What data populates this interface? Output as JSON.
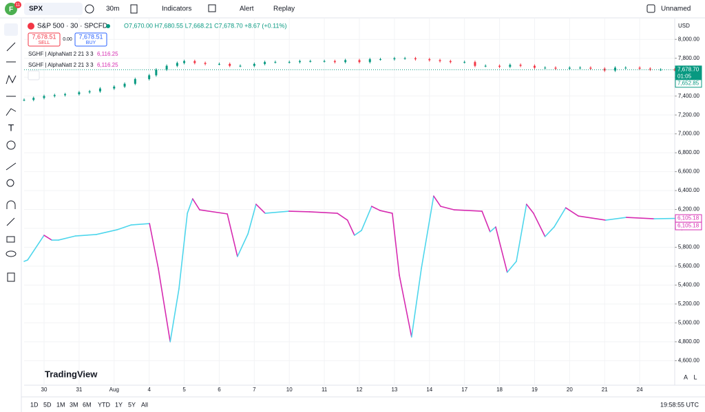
{
  "topbar": {
    "avatar": "F",
    "badge": "11",
    "symbol": "SPX",
    "interval": "30m",
    "indicators": "Indicators",
    "alert": "Alert",
    "replay": "Replay",
    "layout": "Unnamed"
  },
  "legend": {
    "title": "S&P 500 · 30 · SPCFD",
    "ohlc": "O7,670.00 H7,680.55 L7,668.21 C7,678.70 +8.67 (+0.11%)",
    "sell_price": "7,678.51",
    "sell": "SELL",
    "spread": "0.00",
    "buy_price": "7,678.51",
    "buy": "BUY",
    "studies": [
      {
        "name": "SGHF | AlphaNatt 2 21 3 3",
        "value": "6,116.25"
      },
      {
        "name": "SGHF | AlphaNatt 2 21 3 3",
        "value": "6,116.25"
      }
    ]
  },
  "currency": "USD",
  "watermark": "TradingView",
  "price_tags": {
    "last": "7,678.70",
    "countdown": "01:05",
    "prev": "7,652.85",
    "study1": "6,105.18",
    "study2": "6,105.18"
  },
  "chart": {
    "type": "candlestick-with-oscillator",
    "ylim": [
      4450,
      8220
    ],
    "xlim": [
      -0.57,
      18.0
    ],
    "last_price": 7678.7,
    "yticks": [
      {
        "value": 8000,
        "label": "8,000.00"
      },
      {
        "value": 7800,
        "label": "7,800.00"
      },
      {
        "value": 7600,
        "label": "7,600.00"
      },
      {
        "value": 7400,
        "label": "7,400.00"
      },
      {
        "value": 7200,
        "label": "7,200.00"
      },
      {
        "value": 7000,
        "label": "7,000.00"
      },
      {
        "value": 6800,
        "label": "6,800.00"
      },
      {
        "value": 6600,
        "label": "6,600.00"
      },
      {
        "value": 6400,
        "label": "6,400.00"
      },
      {
        "value": 6200,
        "label": "6,200.00"
      },
      {
        "value": 6000,
        "label": "6,000.00"
      },
      {
        "value": 5800,
        "label": "5,800.00"
      },
      {
        "value": 5600,
        "label": "5,600.00"
      },
      {
        "value": 5400,
        "label": "5,400.00"
      },
      {
        "value": 5200,
        "label": "5,200.00"
      },
      {
        "value": 5000,
        "label": "5,000.00"
      },
      {
        "value": 4800,
        "label": "4,800.00"
      },
      {
        "value": 4600,
        "label": "4,600.00"
      }
    ],
    "xticks": [
      {
        "value": 0,
        "label": "30"
      },
      {
        "value": 1,
        "label": "31"
      },
      {
        "value": 2,
        "label": "Aug"
      },
      {
        "value": 3,
        "label": "4"
      },
      {
        "value": 4,
        "label": "5"
      },
      {
        "value": 5,
        "label": "6"
      },
      {
        "value": 6,
        "label": "7"
      },
      {
        "value": 7,
        "label": "10"
      },
      {
        "value": 8,
        "label": "11"
      },
      {
        "value": 9,
        "label": "12"
      },
      {
        "value": 10,
        "label": "13"
      },
      {
        "value": 11,
        "label": "14"
      },
      {
        "value": 12,
        "label": "17"
      },
      {
        "value": 13,
        "label": "18"
      },
      {
        "value": 14,
        "label": "19"
      },
      {
        "value": 15,
        "label": "20"
      },
      {
        "value": 16,
        "label": "21"
      },
      {
        "value": 17,
        "label": "24"
      }
    ],
    "price": {
      "up_color": "#089981",
      "down_color": "#f23645",
      "x": [
        -0.57,
        -0.3,
        0,
        0.3,
        0.6,
        1,
        1.3,
        1.6,
        2,
        2.3,
        2.6,
        3,
        3.2,
        3.5,
        3.8,
        4,
        4.3,
        4.6,
        5,
        5.3,
        5.6,
        6,
        6.3,
        6.6,
        7,
        7.3,
        7.6,
        8,
        8.3,
        8.6,
        9,
        9.3,
        9.6,
        10,
        10.3,
        10.6,
        11,
        11.3,
        11.6,
        12,
        12.3,
        12.6,
        13,
        13.3,
        13.6,
        14,
        14.3,
        14.6,
        15,
        15.3,
        15.6,
        16,
        16.3,
        16.6,
        17,
        17.3,
        17.6,
        18
      ],
      "values": [
        7360,
        7380,
        7400,
        7410,
        7420,
        7440,
        7450,
        7480,
        7500,
        7530,
        7580,
        7620,
        7680,
        7720,
        7750,
        7770,
        7750,
        7740,
        7740,
        7720,
        7720,
        7740,
        7760,
        7760,
        7760,
        7770,
        7770,
        7770,
        7760,
        7780,
        7760,
        7790,
        7790,
        7800,
        7800,
        7790,
        7780,
        7770,
        7760,
        7760,
        7720,
        7720,
        7710,
        7730,
        7720,
        7700,
        7700,
        7690,
        7700,
        7700,
        7690,
        7670,
        7700,
        7700,
        7690,
        7680,
        7680,
        7679
      ]
    },
    "oscillator": {
      "up_color": "#4dd6ec",
      "down_color": "#d62ab0",
      "x": [
        -0.57,
        -0.47,
        0,
        0.22,
        0.41,
        0.9,
        1.49,
        2.08,
        2.48,
        3.01,
        3.26,
        3.6,
        3.85,
        4.09,
        4.24,
        4.44,
        5.23,
        5.52,
        5.82,
        6.05,
        6.31,
        6.99,
        7.58,
        8.37,
        8.66,
        8.86,
        9.06,
        9.35,
        9.59,
        9.94,
        10.14,
        10.49,
        10.77,
        11.12,
        11.32,
        11.71,
        12.5,
        12.73,
        12.89,
        13.22,
        13.48,
        13.77,
        13.97,
        14.3,
        14.56,
        14.89,
        15.25,
        16.03,
        16.62,
        17.41,
        18.0
      ],
      "values": [
        5651,
        5665,
        5927,
        5876,
        5876,
        5920,
        5935,
        5985,
        6036,
        6051,
        5578,
        4800,
        5360,
        6160,
        6313,
        6196,
        6153,
        5702,
        5942,
        6255,
        6160,
        6182,
        6175,
        6160,
        6087,
        5927,
        5978,
        6233,
        6189,
        6160,
        5505,
        4851,
        5578,
        6342,
        6233,
        6196,
        6182,
        5964,
        6015,
        5535,
        5651,
        6255,
        6160,
        5913,
        6015,
        6218,
        6131,
        6087,
        6116,
        6102,
        6105
      ]
    }
  },
  "bottombar": {
    "ranges": [
      "1D",
      "5D",
      "1M",
      "3M",
      "6M",
      "YTD",
      "1Y",
      "5Y",
      "All"
    ],
    "clock": "19:58:55 UTC",
    "auto": "A",
    "log": "L"
  }
}
